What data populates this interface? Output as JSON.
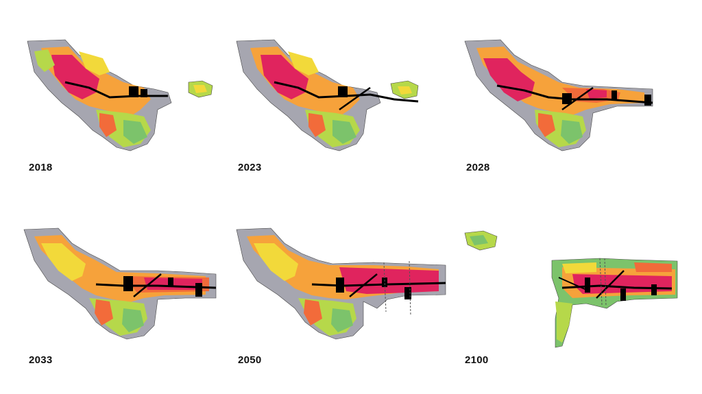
{
  "panels": [
    {
      "year": "2018"
    },
    {
      "year": "2023"
    },
    {
      "year": "2028"
    },
    {
      "year": "2033"
    },
    {
      "year": "2050"
    },
    {
      "year": "2100"
    }
  ],
  "colors": {
    "high": "#e0245e",
    "mid_high": "#f26b3a",
    "mid": "#f6a23b",
    "mid_low": "#f2d93a",
    "low": "#b6d84a",
    "lower": "#7cc36b",
    "lowest": "#a6a6b0",
    "corridor": "#000000"
  }
}
